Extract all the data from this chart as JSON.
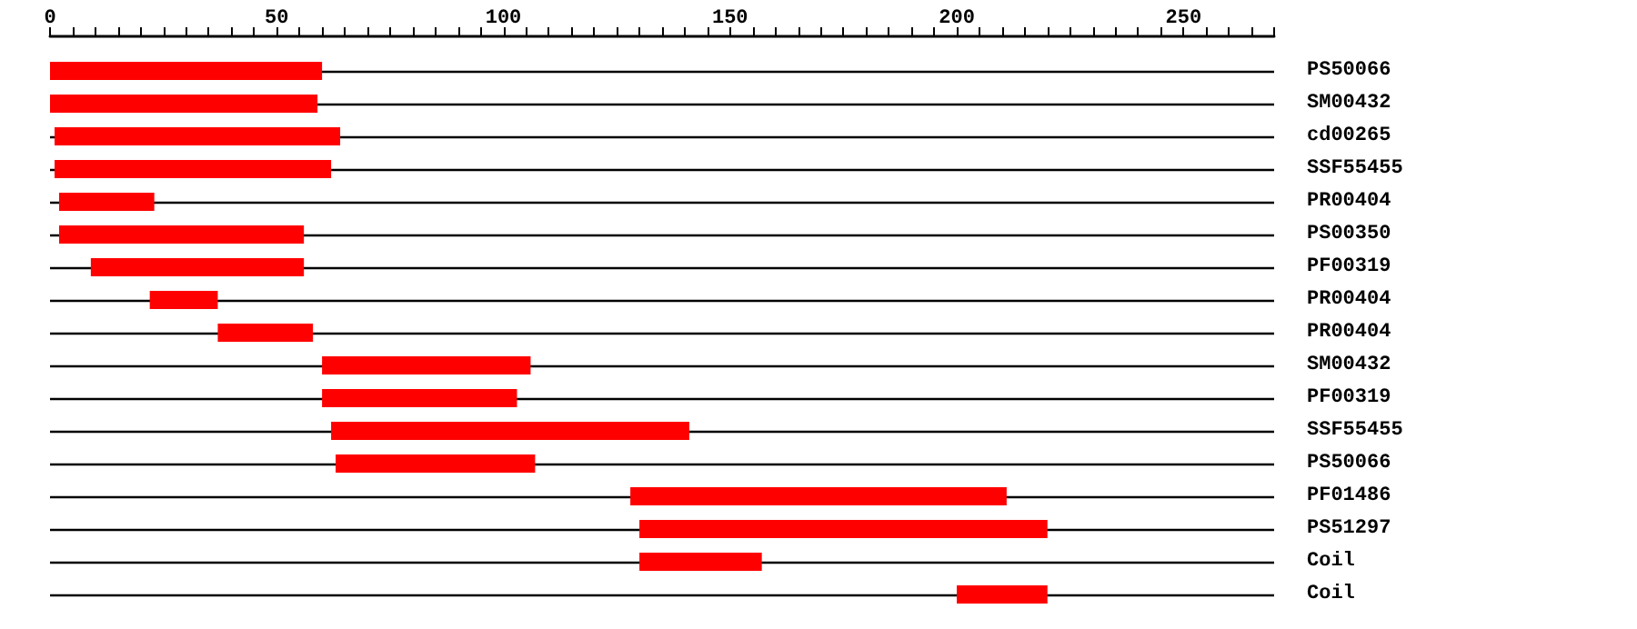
{
  "chart_data": {
    "type": "bar",
    "orientation": "horizontal",
    "categories": [
      "PS50066",
      "SM00432",
      "cd00265",
      "SSF55455",
      "PR00404",
      "PS00350",
      "PF00319",
      "PR00404",
      "PR00404",
      "SM00432",
      "PF00319",
      "SSF55455",
      "PS50066",
      "PF01486",
      "PS51297",
      "Coil",
      "Coil"
    ],
    "base": [
      0,
      0,
      1,
      1,
      2,
      2,
      9,
      22,
      37,
      60,
      60,
      62,
      63,
      128,
      130,
      130,
      200
    ],
    "values": [
      60,
      59,
      63,
      61,
      21,
      54,
      47,
      15,
      21,
      46,
      43,
      79,
      44,
      83,
      90,
      27,
      20
    ],
    "color": "#ff0000",
    "xlim": [
      0,
      270
    ],
    "xticks": [
      0,
      {
        "value": 5,
        "label": null
      },
      {
        "value": 10,
        "label": null
      },
      {
        "value": 15,
        "label": null
      },
      {
        "value": 20,
        "label": null
      },
      {
        "value": 25,
        "label": null
      },
      {
        "value": 30,
        "label": null
      },
      {
        "value": 35,
        "label": null
      },
      {
        "value": 40,
        "label": null
      },
      {
        "value": 45,
        "label": null
      },
      50,
      {
        "value": 55,
        "label": null
      },
      {
        "value": 60,
        "label": null
      },
      {
        "value": 65,
        "label": null
      },
      {
        "value": 70,
        "label": null
      },
      {
        "value": 75,
        "label": null
      },
      {
        "value": 80,
        "label": null
      },
      {
        "value": 85,
        "label": null
      },
      {
        "value": 90,
        "label": null
      },
      {
        "value": 95,
        "label": null
      },
      100,
      {
        "value": 105,
        "label": null
      },
      {
        "value": 110,
        "label": null
      },
      {
        "value": 115,
        "label": null
      },
      {
        "value": 120,
        "label": null
      },
      {
        "value": 125,
        "label": null
      },
      {
        "value": 130,
        "label": null
      },
      {
        "value": 135,
        "label": null
      },
      {
        "value": 140,
        "label": null
      },
      {
        "value": 145,
        "label": null
      },
      150,
      {
        "value": 155,
        "label": null
      },
      {
        "value": 160,
        "label": null
      },
      {
        "value": 165,
        "label": null
      },
      {
        "value": 170,
        "label": null
      },
      {
        "value": 175,
        "label": null
      },
      {
        "value": 180,
        "label": null
      },
      {
        "value": 185,
        "label": null
      },
      {
        "value": 190,
        "label": null
      },
      {
        "value": 195,
        "label": null
      },
      200,
      {
        "value": 205,
        "label": null
      },
      {
        "value": 210,
        "label": null
      },
      {
        "value": 215,
        "label": null
      },
      {
        "value": 220,
        "label": null
      },
      {
        "value": 225,
        "label": null
      },
      {
        "value": 230,
        "label": null
      },
      {
        "value": 235,
        "label": null
      },
      {
        "value": 240,
        "label": null
      },
      {
        "value": 245,
        "label": null
      },
      250,
      {
        "value": 255,
        "label": null
      },
      {
        "value": 260,
        "label": null
      },
      {
        "value": 265,
        "label": null
      },
      {
        "value": 270,
        "label": null
      }
    ],
    "grid": "y"
  }
}
